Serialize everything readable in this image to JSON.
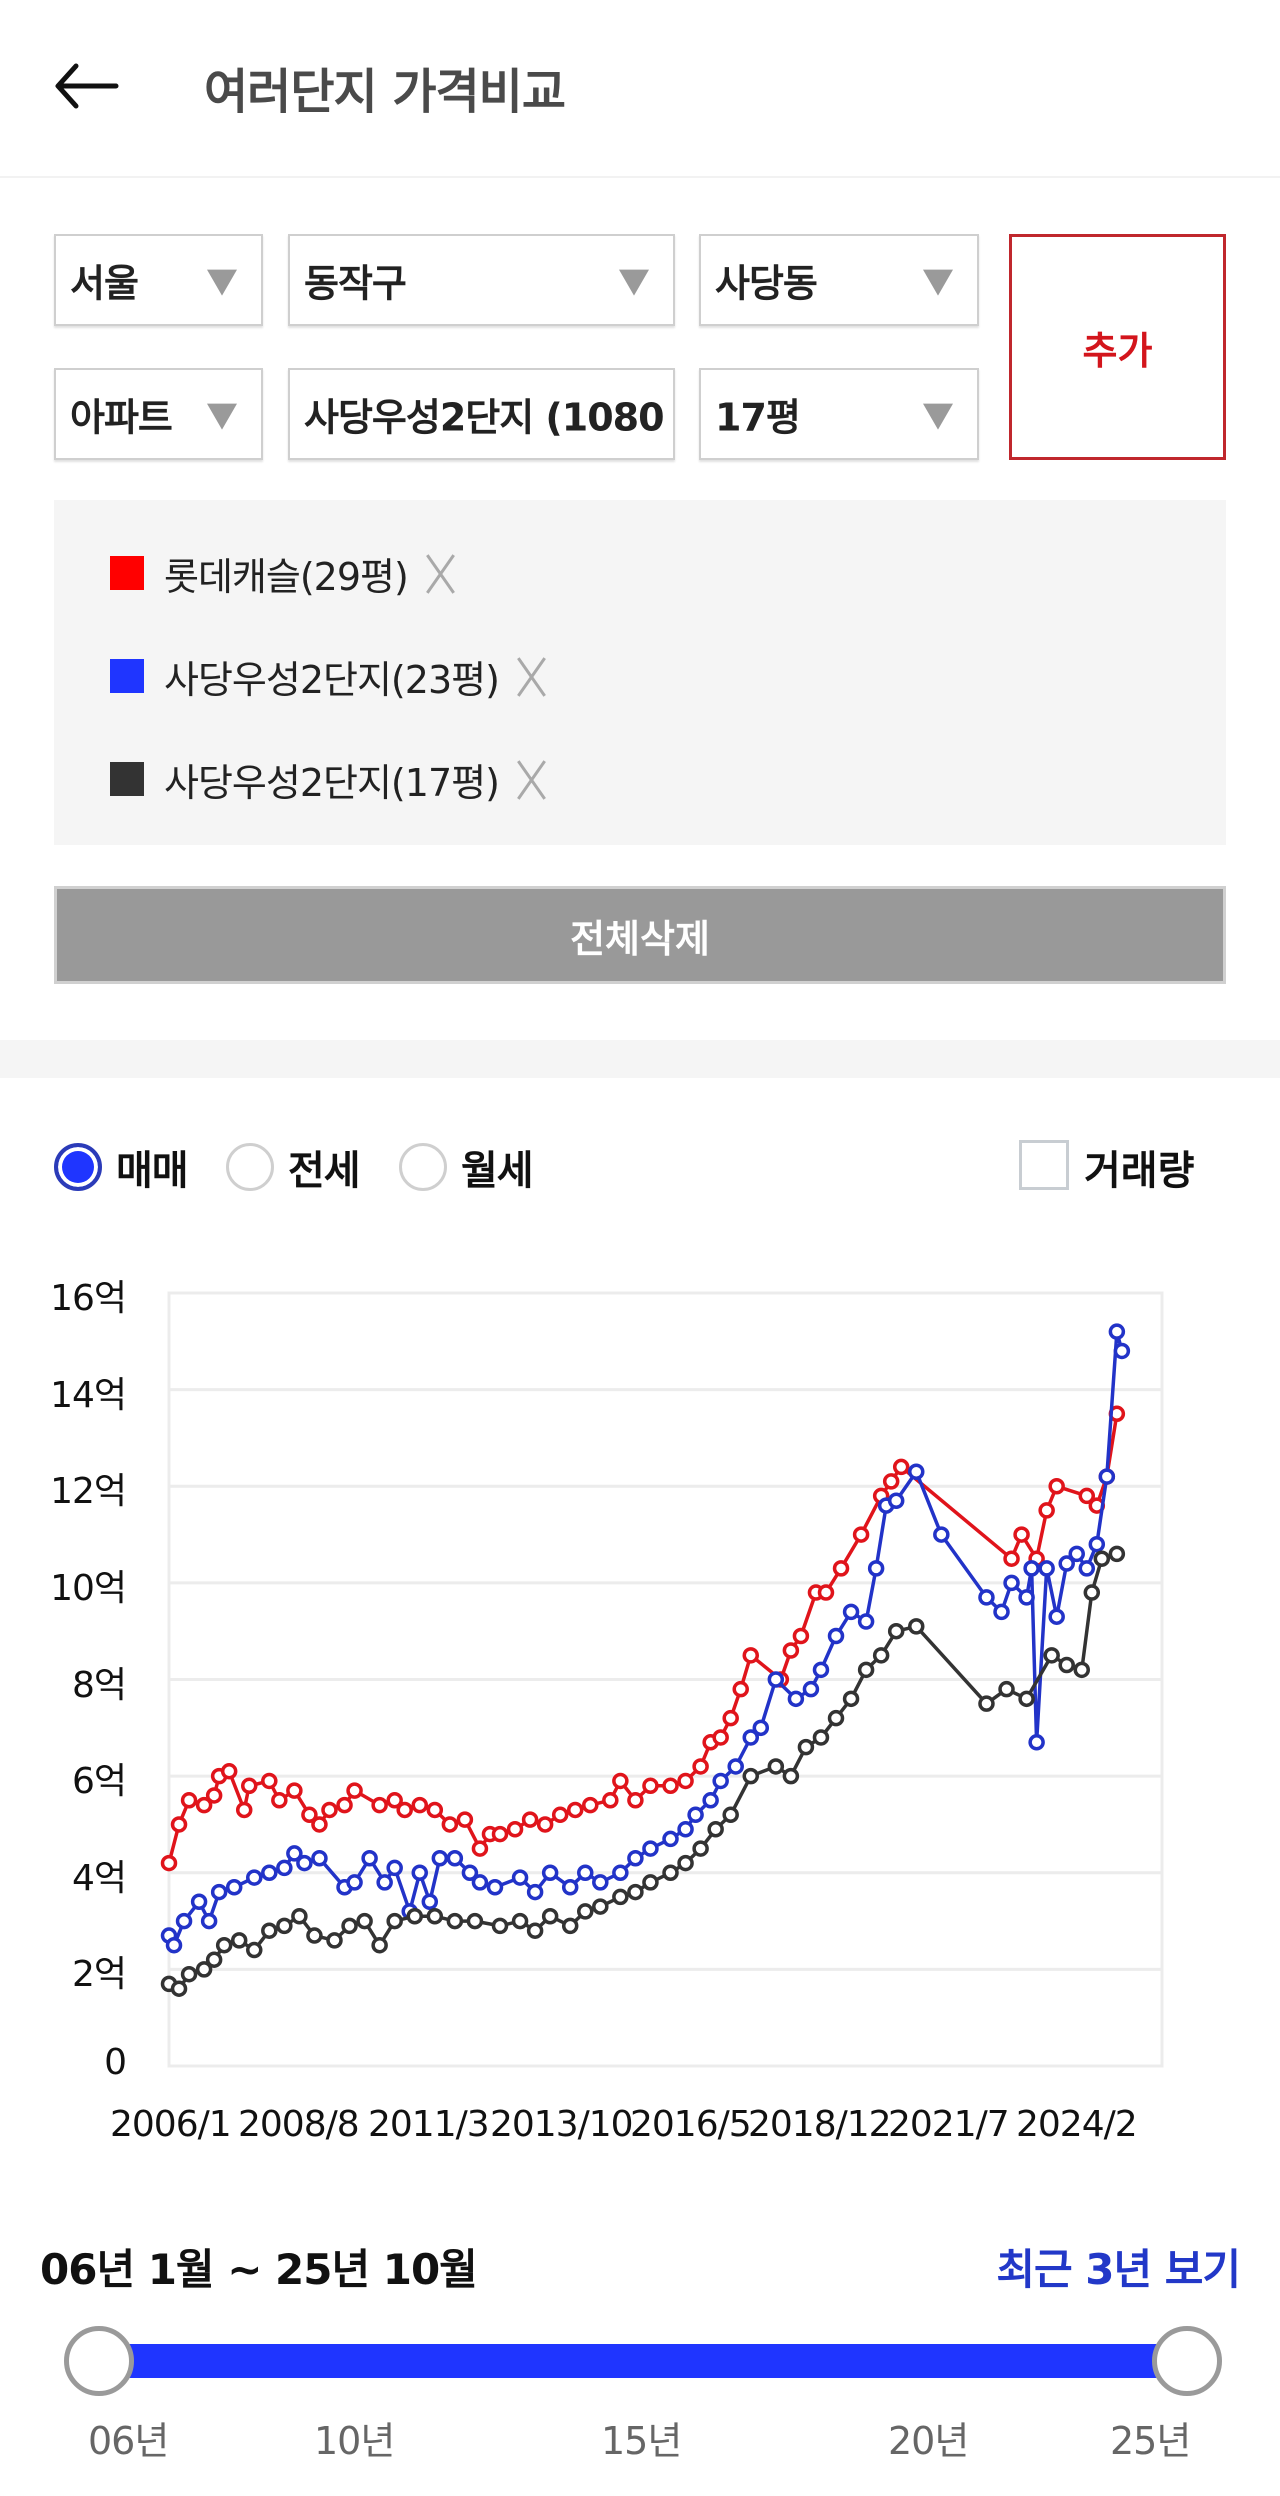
{
  "header": {
    "title": "여러단지 가격비교",
    "back_icon": "arrow-left-icon"
  },
  "filters": {
    "row1": [
      {
        "name": "sido",
        "value": "서울"
      },
      {
        "name": "gu",
        "value": "동작구"
      },
      {
        "name": "dong",
        "value": "사당동"
      }
    ],
    "row2": [
      {
        "name": "type",
        "value": "아파트"
      },
      {
        "name": "complex",
        "value": "사당우성2단지 (1080"
      },
      {
        "name": "size",
        "value": "17평"
      }
    ],
    "add_label": "추가"
  },
  "selected": [
    {
      "label": "롯데캐슬(29평)",
      "color": "#ff0000"
    },
    {
      "label": "사당우성2단지(23평)",
      "color": "#1f35ff"
    },
    {
      "label": "사당우성2단지(17평)",
      "color": "#333333"
    }
  ],
  "delete_all_label": "전체삭제",
  "trade_types": {
    "options": [
      {
        "label": "매매",
        "checked": true
      },
      {
        "label": "전세",
        "checked": false
      },
      {
        "label": "월세",
        "checked": false
      }
    ],
    "volume_label": "거래량",
    "volume_checked": false
  },
  "period": {
    "range_text": "06년 1월 ~ 25년 10월",
    "recent_label": "최근 3년 보기",
    "ticks": [
      "06년",
      "10년",
      "15년",
      "20년",
      "25년"
    ]
  },
  "chart_data": {
    "type": "line",
    "title": "",
    "xlabel": "",
    "ylabel": "",
    "ylim": [
      0,
      16
    ],
    "y_unit": "억",
    "y_ticks": [
      "0",
      "2억",
      "4억",
      "6억",
      "8억",
      "10억",
      "12억",
      "14억",
      "16억"
    ],
    "x_ticks": [
      "2006/1",
      "2008/8",
      "2011/3",
      "2013/10",
      "2016/5",
      "2018/12",
      "2021/7",
      "2024/2"
    ],
    "xlim": [
      2006.0,
      2025.8
    ],
    "grid": true,
    "legend_position": "top (separate panel)",
    "series": [
      {
        "name": "롯데캐슬(29평)",
        "color": "#e0141b",
        "points": [
          [
            2006.0,
            4.2
          ],
          [
            2006.2,
            5.0
          ],
          [
            2006.4,
            5.5
          ],
          [
            2006.7,
            5.4
          ],
          [
            2006.9,
            5.6
          ],
          [
            2007.0,
            6.0
          ],
          [
            2007.2,
            6.1
          ],
          [
            2007.5,
            5.3
          ],
          [
            2007.6,
            5.8
          ],
          [
            2008.0,
            5.9
          ],
          [
            2008.2,
            5.5
          ],
          [
            2008.5,
            5.7
          ],
          [
            2008.8,
            5.2
          ],
          [
            2009.0,
            5.0
          ],
          [
            2009.2,
            5.3
          ],
          [
            2009.5,
            5.4
          ],
          [
            2009.7,
            5.7
          ],
          [
            2010.2,
            5.4
          ],
          [
            2010.5,
            5.5
          ],
          [
            2010.7,
            5.3
          ],
          [
            2011.0,
            5.4
          ],
          [
            2011.3,
            5.3
          ],
          [
            2011.6,
            5.0
          ],
          [
            2011.9,
            5.1
          ],
          [
            2012.2,
            4.5
          ],
          [
            2012.4,
            4.8
          ],
          [
            2012.6,
            4.8
          ],
          [
            2012.9,
            4.9
          ],
          [
            2013.2,
            5.1
          ],
          [
            2013.5,
            5.0
          ],
          [
            2013.8,
            5.2
          ],
          [
            2014.1,
            5.3
          ],
          [
            2014.4,
            5.4
          ],
          [
            2014.8,
            5.5
          ],
          [
            2015.0,
            5.9
          ],
          [
            2015.3,
            5.5
          ],
          [
            2015.6,
            5.8
          ],
          [
            2016.0,
            5.8
          ],
          [
            2016.3,
            5.9
          ],
          [
            2016.6,
            6.2
          ],
          [
            2016.8,
            6.7
          ],
          [
            2017.0,
            6.8
          ],
          [
            2017.2,
            7.2
          ],
          [
            2017.4,
            7.8
          ],
          [
            2017.6,
            8.5
          ],
          [
            2018.2,
            8.0
          ],
          [
            2018.4,
            8.6
          ],
          [
            2018.6,
            8.9
          ],
          [
            2018.9,
            9.8
          ],
          [
            2019.1,
            9.8
          ],
          [
            2019.4,
            10.3
          ],
          [
            2019.8,
            11.0
          ],
          [
            2020.2,
            11.8
          ],
          [
            2020.4,
            12.1
          ],
          [
            2020.6,
            12.4
          ],
          [
            2022.8,
            10.5
          ],
          [
            2023.0,
            11.0
          ],
          [
            2023.3,
            10.5
          ],
          [
            2023.5,
            11.5
          ],
          [
            2023.7,
            12.0
          ],
          [
            2024.3,
            11.8
          ],
          [
            2024.5,
            11.6
          ],
          [
            2024.7,
            12.2
          ],
          [
            2024.9,
            13.5
          ]
        ]
      },
      {
        "name": "사당우성2단지(23평)",
        "color": "#2233c8",
        "points": [
          [
            2006.0,
            2.7
          ],
          [
            2006.1,
            2.5
          ],
          [
            2006.3,
            3.0
          ],
          [
            2006.6,
            3.4
          ],
          [
            2006.8,
            3.0
          ],
          [
            2007.0,
            3.6
          ],
          [
            2007.3,
            3.7
          ],
          [
            2007.7,
            3.9
          ],
          [
            2008.0,
            4.0
          ],
          [
            2008.3,
            4.1
          ],
          [
            2008.5,
            4.4
          ],
          [
            2008.7,
            4.2
          ],
          [
            2009.0,
            4.3
          ],
          [
            2009.5,
            3.7
          ],
          [
            2009.7,
            3.8
          ],
          [
            2010.0,
            4.3
          ],
          [
            2010.3,
            3.8
          ],
          [
            2010.5,
            4.1
          ],
          [
            2010.8,
            3.2
          ],
          [
            2011.0,
            4.0
          ],
          [
            2011.2,
            3.4
          ],
          [
            2011.4,
            4.3
          ],
          [
            2011.7,
            4.3
          ],
          [
            2012.0,
            4.0
          ],
          [
            2012.2,
            3.8
          ],
          [
            2012.5,
            3.7
          ],
          [
            2013.0,
            3.9
          ],
          [
            2013.3,
            3.6
          ],
          [
            2013.6,
            4.0
          ],
          [
            2014.0,
            3.7
          ],
          [
            2014.3,
            4.0
          ],
          [
            2014.6,
            3.8
          ],
          [
            2015.0,
            4.0
          ],
          [
            2015.3,
            4.3
          ],
          [
            2015.6,
            4.5
          ],
          [
            2016.0,
            4.7
          ],
          [
            2016.3,
            4.9
          ],
          [
            2016.5,
            5.2
          ],
          [
            2016.8,
            5.5
          ],
          [
            2017.0,
            5.9
          ],
          [
            2017.3,
            6.2
          ],
          [
            2017.6,
            6.8
          ],
          [
            2017.8,
            7.0
          ],
          [
            2018.1,
            8.0
          ],
          [
            2018.5,
            7.6
          ],
          [
            2018.8,
            7.8
          ],
          [
            2019.0,
            8.2
          ],
          [
            2019.3,
            8.9
          ],
          [
            2019.6,
            9.4
          ],
          [
            2019.9,
            9.2
          ],
          [
            2020.1,
            10.3
          ],
          [
            2020.3,
            11.6
          ],
          [
            2020.5,
            11.7
          ],
          [
            2020.9,
            12.3
          ],
          [
            2021.4,
            11.0
          ],
          [
            2022.3,
            9.7
          ],
          [
            2022.6,
            9.4
          ],
          [
            2022.8,
            10.0
          ],
          [
            2023.1,
            9.7
          ],
          [
            2023.2,
            10.3
          ],
          [
            2023.3,
            6.7
          ],
          [
            2023.5,
            10.3
          ],
          [
            2023.7,
            9.3
          ],
          [
            2023.9,
            10.4
          ],
          [
            2024.1,
            10.6
          ],
          [
            2024.3,
            10.3
          ],
          [
            2024.5,
            10.8
          ],
          [
            2024.7,
            12.2
          ],
          [
            2024.9,
            15.2
          ],
          [
            2025.0,
            14.8
          ]
        ]
      },
      {
        "name": "사당우성2단지(17평)",
        "color": "#333333",
        "points": [
          [
            2006.0,
            1.7
          ],
          [
            2006.2,
            1.6
          ],
          [
            2006.4,
            1.9
          ],
          [
            2006.7,
            2.0
          ],
          [
            2006.9,
            2.2
          ],
          [
            2007.1,
            2.5
          ],
          [
            2007.4,
            2.6
          ],
          [
            2007.7,
            2.4
          ],
          [
            2008.0,
            2.8
          ],
          [
            2008.3,
            2.9
          ],
          [
            2008.6,
            3.1
          ],
          [
            2008.9,
            2.7
          ],
          [
            2009.3,
            2.6
          ],
          [
            2009.6,
            2.9
          ],
          [
            2009.9,
            3.0
          ],
          [
            2010.2,
            2.5
          ],
          [
            2010.5,
            3.0
          ],
          [
            2010.9,
            3.1
          ],
          [
            2011.3,
            3.1
          ],
          [
            2011.7,
            3.0
          ],
          [
            2012.1,
            3.0
          ],
          [
            2012.6,
            2.9
          ],
          [
            2013.0,
            3.0
          ],
          [
            2013.3,
            2.8
          ],
          [
            2013.6,
            3.1
          ],
          [
            2014.0,
            2.9
          ],
          [
            2014.3,
            3.2
          ],
          [
            2014.6,
            3.3
          ],
          [
            2015.0,
            3.5
          ],
          [
            2015.3,
            3.6
          ],
          [
            2015.6,
            3.8
          ],
          [
            2016.0,
            4.0
          ],
          [
            2016.3,
            4.2
          ],
          [
            2016.6,
            4.5
          ],
          [
            2016.9,
            4.9
          ],
          [
            2017.2,
            5.2
          ],
          [
            2017.6,
            6.0
          ],
          [
            2018.1,
            6.2
          ],
          [
            2018.4,
            6.0
          ],
          [
            2018.7,
            6.6
          ],
          [
            2019.0,
            6.8
          ],
          [
            2019.3,
            7.2
          ],
          [
            2019.6,
            7.6
          ],
          [
            2019.9,
            8.2
          ],
          [
            2020.2,
            8.5
          ],
          [
            2020.5,
            9.0
          ],
          [
            2020.9,
            9.1
          ],
          [
            2022.3,
            7.5
          ],
          [
            2022.7,
            7.8
          ],
          [
            2023.1,
            7.6
          ],
          [
            2023.6,
            8.5
          ],
          [
            2023.9,
            8.3
          ],
          [
            2024.2,
            8.2
          ],
          [
            2024.4,
            9.8
          ],
          [
            2024.6,
            10.5
          ],
          [
            2024.9,
            10.6
          ]
        ]
      }
    ]
  }
}
